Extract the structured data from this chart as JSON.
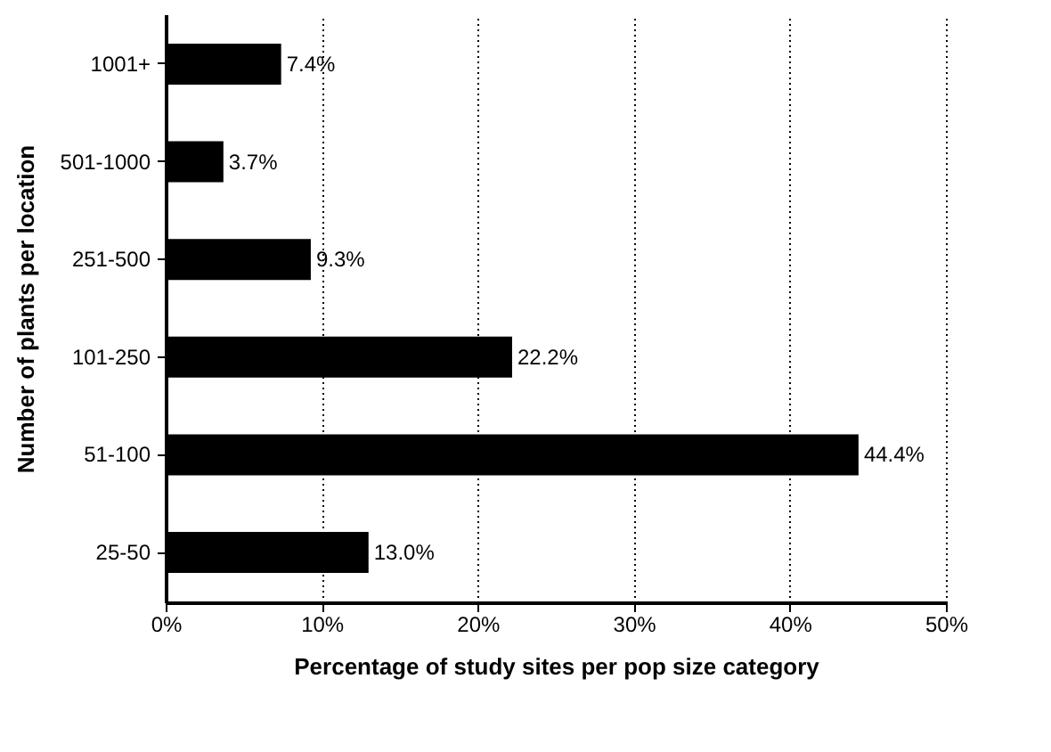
{
  "chart_data": {
    "type": "bar",
    "orientation": "horizontal",
    "xlabel": "Percentage of study sites per pop size category",
    "ylabel": "Number of plants per location",
    "categories": [
      "1001+",
      "501-1000",
      "251-500",
      "101-250",
      "51-100",
      "25-50"
    ],
    "values": [
      7.4,
      3.7,
      9.3,
      22.2,
      44.4,
      13.0
    ],
    "value_labels": [
      "7.4%",
      "3.7%",
      "9.3%",
      "22.2%",
      "44.4%",
      "13.0%"
    ],
    "color": "#000000",
    "xlim": [
      0,
      50
    ],
    "xticks": [
      {
        "value": 0,
        "label": "0%"
      },
      {
        "value": 10,
        "label": "10%"
      },
      {
        "value": 20,
        "label": "20%"
      },
      {
        "value": 30,
        "label": "30%"
      },
      {
        "value": 40,
        "label": "40%"
      },
      {
        "value": 50,
        "label": "50%"
      }
    ],
    "grid": "x"
  }
}
